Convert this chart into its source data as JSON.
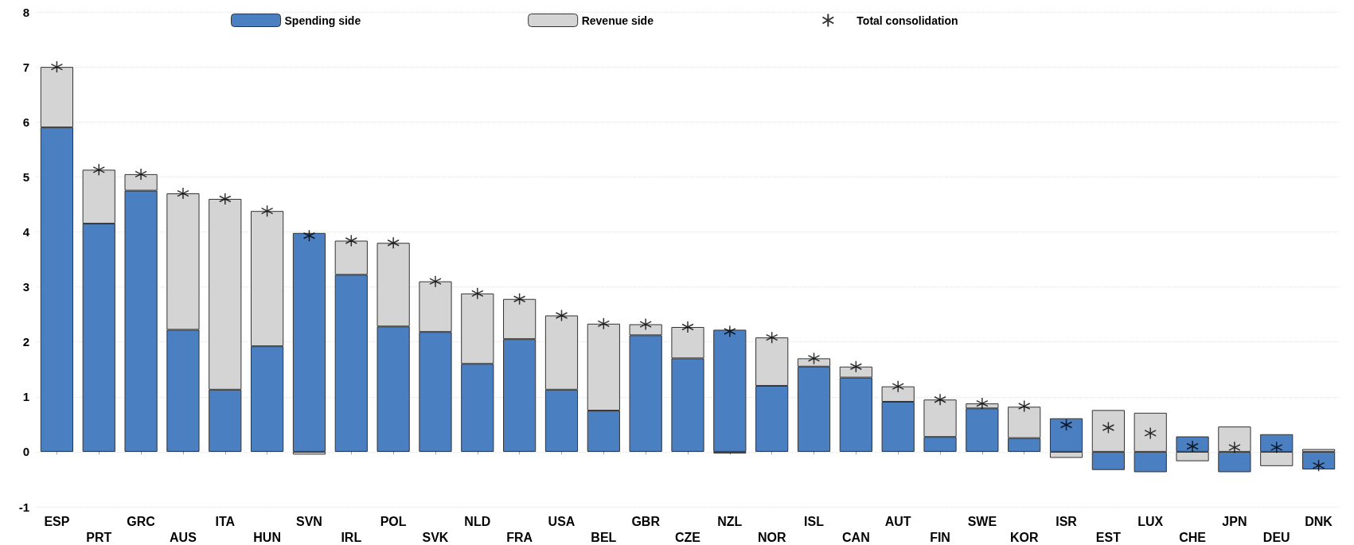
{
  "chart_data": {
    "type": "bar",
    "stacked": true,
    "categories": [
      "ESP",
      "PRT",
      "GRC",
      "AUS",
      "ITA",
      "HUN",
      "SVN",
      "IRL",
      "POL",
      "SVK",
      "NLD",
      "FRA",
      "USA",
      "BEL",
      "GBR",
      "CZE",
      "NZL",
      "NOR",
      "ISL",
      "CAN",
      "AUT",
      "FIN",
      "SWE",
      "KOR",
      "ISR",
      "EST",
      "LUX",
      "CHE",
      "JPN",
      "DEU",
      "DNK"
    ],
    "series": [
      {
        "name": "Spending side",
        "color": "#4a7fc1",
        "values": [
          5.9,
          4.15,
          4.75,
          2.22,
          1.13,
          1.92,
          3.98,
          3.22,
          2.28,
          2.18,
          1.6,
          2.05,
          1.13,
          0.75,
          2.12,
          1.7,
          2.22,
          1.2,
          1.55,
          1.35,
          0.91,
          0.27,
          0.79,
          0.25,
          0.61,
          -0.33,
          -0.37,
          0.28,
          -0.37,
          0.32,
          -0.32
        ]
      },
      {
        "name": "Revenue side",
        "color": "#d4d4d4",
        "values": [
          1.1,
          0.98,
          0.3,
          2.48,
          3.47,
          2.46,
          -0.05,
          0.62,
          1.52,
          0.92,
          1.28,
          0.73,
          1.35,
          1.58,
          0.2,
          0.57,
          -0.03,
          0.88,
          0.15,
          0.2,
          0.28,
          0.68,
          0.09,
          0.57,
          -0.11,
          0.76,
          0.71,
          -0.17,
          0.46,
          -0.26,
          0.05
        ]
      },
      {
        "name": "Total consolidation",
        "type": "scatter",
        "marker": "cross",
        "color": "#000000",
        "values": [
          7.0,
          5.13,
          5.05,
          4.7,
          4.6,
          4.38,
          3.93,
          3.84,
          3.8,
          3.1,
          2.88,
          2.78,
          2.48,
          2.33,
          2.32,
          2.27,
          2.19,
          2.08,
          1.7,
          1.55,
          1.19,
          0.95,
          0.88,
          0.83,
          0.49,
          0.44,
          0.34,
          0.1,
          0.08,
          0.08,
          -0.25
        ]
      }
    ],
    "ylim": [
      -1,
      8
    ],
    "yticks": [
      -1,
      0,
      1,
      2,
      3,
      4,
      5,
      6,
      7,
      8
    ],
    "grid": "y",
    "legend": "top"
  }
}
